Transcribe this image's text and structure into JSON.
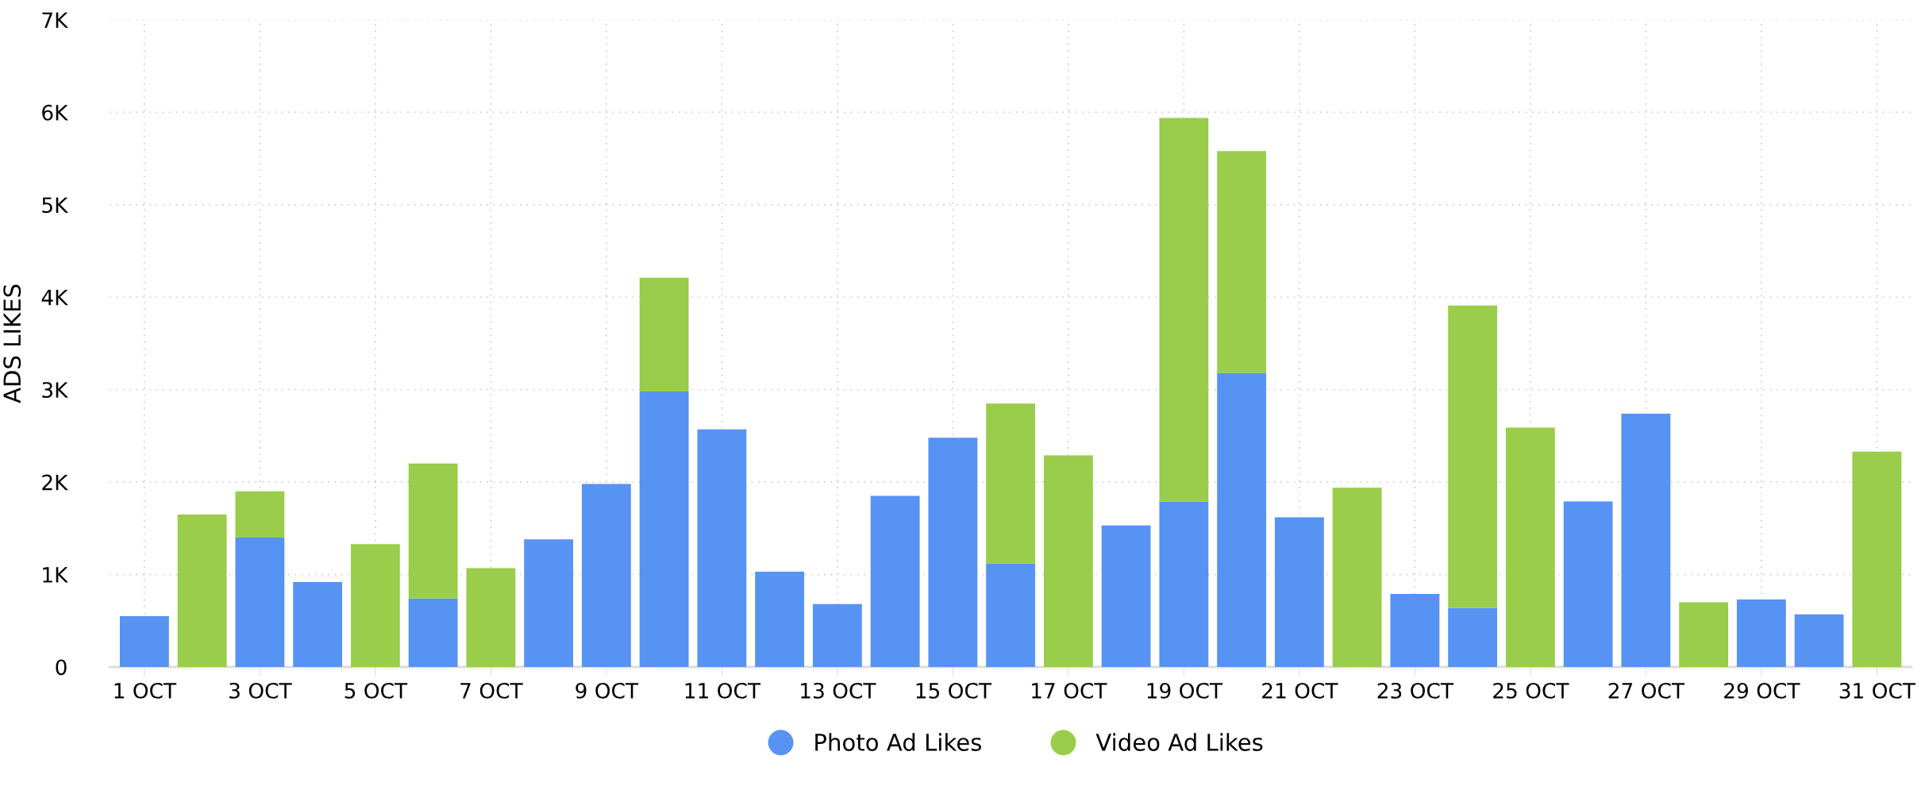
{
  "chart_data": {
    "type": "bar",
    "stacked": true,
    "ylabel": "ADS LIKES",
    "categories": [
      "1 OCT",
      null,
      "3 OCT",
      null,
      "5 OCT",
      null,
      "7 OCT",
      null,
      "9 OCT",
      null,
      "11 OCT",
      null,
      "13 OCT",
      null,
      "15 OCT",
      null,
      "17 OCT",
      null,
      "19 OCT",
      null,
      "21 OCT",
      null,
      "23 OCT",
      null,
      "25 OCT",
      null,
      "27 OCT",
      null,
      "29 OCT",
      null,
      "31 OCT"
    ],
    "series": [
      {
        "name": "Photo Ad Likes",
        "color": "#5793f3",
        "values": [
          550,
          0,
          1400,
          920,
          0,
          740,
          0,
          1380,
          1980,
          2980,
          2570,
          1030,
          680,
          1850,
          2480,
          1120,
          0,
          1530,
          1790,
          3180,
          1620,
          0,
          790,
          640,
          0,
          1790,
          2740,
          0,
          730,
          570,
          0
        ]
      },
      {
        "name": "Video Ad Likes",
        "color": "#9acd4b",
        "values": [
          0,
          1650,
          500,
          0,
          1330,
          1460,
          1070,
          0,
          0,
          1230,
          0,
          0,
          0,
          0,
          0,
          1730,
          2290,
          0,
          4150,
          2400,
          0,
          1940,
          0,
          3270,
          2590,
          0,
          0,
          700,
          0,
          0,
          2330
        ]
      }
    ],
    "ylim": [
      0,
      7000
    ],
    "yticks": [
      0,
      {
        "value": 1000,
        "label": "1K"
      },
      {
        "value": 2000,
        "label": "2K"
      },
      {
        "value": 3000,
        "label": "3K"
      },
      {
        "value": 4000,
        "label": "4K"
      },
      {
        "value": 5000,
        "label": "5K"
      },
      {
        "value": 6000,
        "label": "6K"
      },
      {
        "value": 7000,
        "label": "7K"
      }
    ],
    "grid": true,
    "legend": "bottom",
    "marker": "circle"
  }
}
